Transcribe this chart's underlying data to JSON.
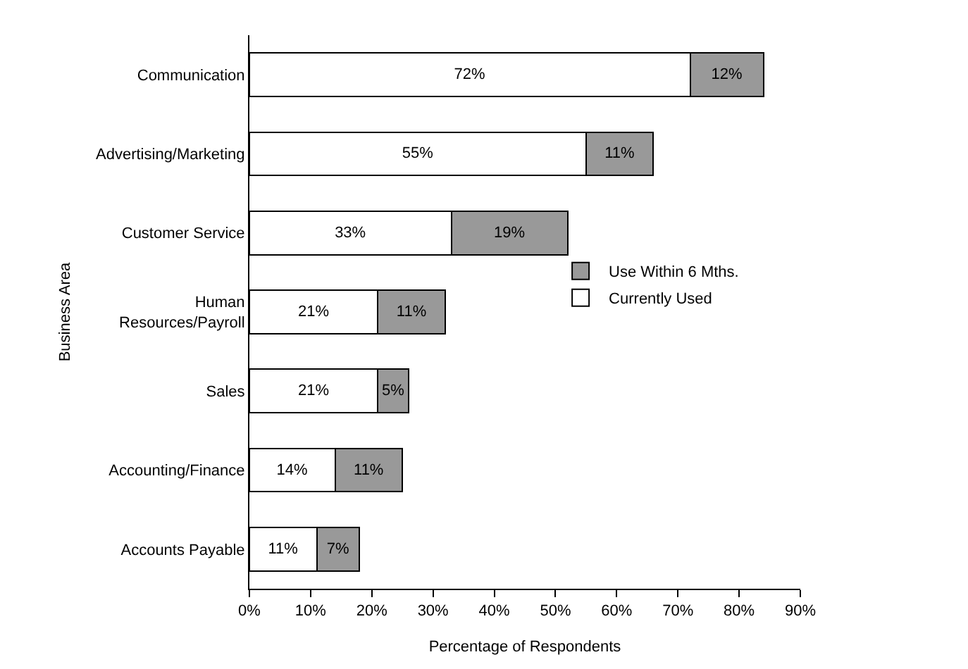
{
  "chart_data": {
    "type": "bar",
    "orientation": "horizontal",
    "stacked": true,
    "categories": [
      "Communication",
      "Advertising/Marketing",
      "Customer Service",
      "Human\nResources/Payroll",
      "Sales",
      "Accounting/Finance",
      "Accounts Payable"
    ],
    "series": [
      {
        "name": "Currently Used",
        "color": "#ffffff",
        "values": [
          72,
          55,
          33,
          21,
          21,
          14,
          11
        ],
        "value_labels": [
          "72%",
          "55%",
          "33%",
          "21%",
          "21%",
          "14%",
          "11%"
        ]
      },
      {
        "name": "Use Within 6 Mths.",
        "color": "#999999",
        "values": [
          12,
          11,
          19,
          11,
          5,
          11,
          7
        ],
        "value_labels": [
          "12%",
          "11%",
          "19%",
          "11%",
          "5%",
          "11%",
          "7%"
        ]
      }
    ],
    "xlabel": "Percentage of Respondents",
    "ylabel": "Business Area",
    "xlim": [
      0,
      90
    ],
    "xticks": [
      {
        "value": 0,
        "label": "0%"
      },
      {
        "value": 10,
        "label": "10%"
      },
      {
        "value": 20,
        "label": "20%"
      },
      {
        "value": 30,
        "label": "30%"
      },
      {
        "value": 40,
        "label": "40%"
      },
      {
        "value": 50,
        "label": "50%"
      },
      {
        "value": 60,
        "label": "60%"
      },
      {
        "value": 70,
        "label": "70%"
      },
      {
        "value": 80,
        "label": "80%"
      },
      {
        "value": 90,
        "label": "90%"
      }
    ],
    "legend": "right"
  }
}
